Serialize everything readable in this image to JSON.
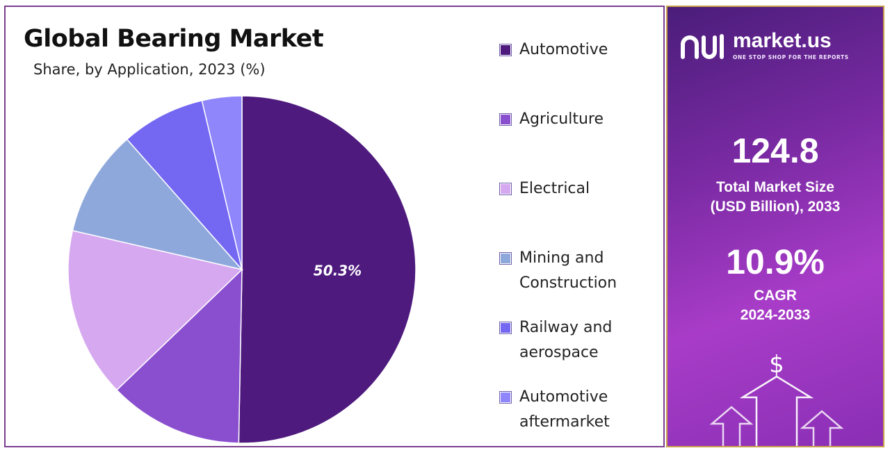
{
  "header": {
    "title": "Global Bearing Market",
    "subtitle": "Share, by Application, 2023 (%)"
  },
  "colors": {
    "frame_border": "#7a3d8f",
    "panel_border": "#caa24a",
    "slice_label": "#ffffff"
  },
  "chart_data": {
    "type": "pie",
    "title": "Global Bearing Market",
    "subtitle": "Share, by Application, 2023 (%)",
    "legend_position": "right",
    "slices": [
      {
        "name": "Automotive",
        "value": 50.3,
        "color": "#4e1a7e",
        "label": "50.3%"
      },
      {
        "name": "Agriculture",
        "value": 12.5,
        "color": "#8a4fcf"
      },
      {
        "name": "Electrical",
        "value": 15.8,
        "color": "#d6a8f0"
      },
      {
        "name": "Mining and Construction",
        "value": 9.9,
        "color": "#8fa8dc"
      },
      {
        "name": "Railway and aerospace",
        "value": 7.8,
        "color": "#7468f2"
      },
      {
        "name": "Automotive aftermarket",
        "value": 3.7,
        "color": "#8e86fa"
      }
    ]
  },
  "legend": {
    "items": [
      {
        "lines": [
          "Automotive"
        ],
        "color": "#4e1a7e"
      },
      {
        "lines": [
          "Agriculture"
        ],
        "color": "#8a4fcf"
      },
      {
        "lines": [
          "Electrical"
        ],
        "color": "#d6a8f0"
      },
      {
        "lines": [
          "Mining and",
          "Construction"
        ],
        "color": "#8fa8dc"
      },
      {
        "lines": [
          "Railway and",
          "aerospace"
        ],
        "color": "#7468f2"
      },
      {
        "lines": [
          "Automotive",
          "aftermarket"
        ],
        "color": "#8e86fa"
      }
    ]
  },
  "panel": {
    "brand_name": "market.us",
    "brand_tagline": "ONE STOP SHOP FOR THE REPORTS",
    "market_size_value": "124.8",
    "market_size_label": [
      "Total Market Size",
      "(USD Billion), 2033"
    ],
    "cagr_value": "10.9%",
    "cagr_label": [
      "CAGR",
      "2024-2033"
    ],
    "currency_symbol": "$"
  }
}
